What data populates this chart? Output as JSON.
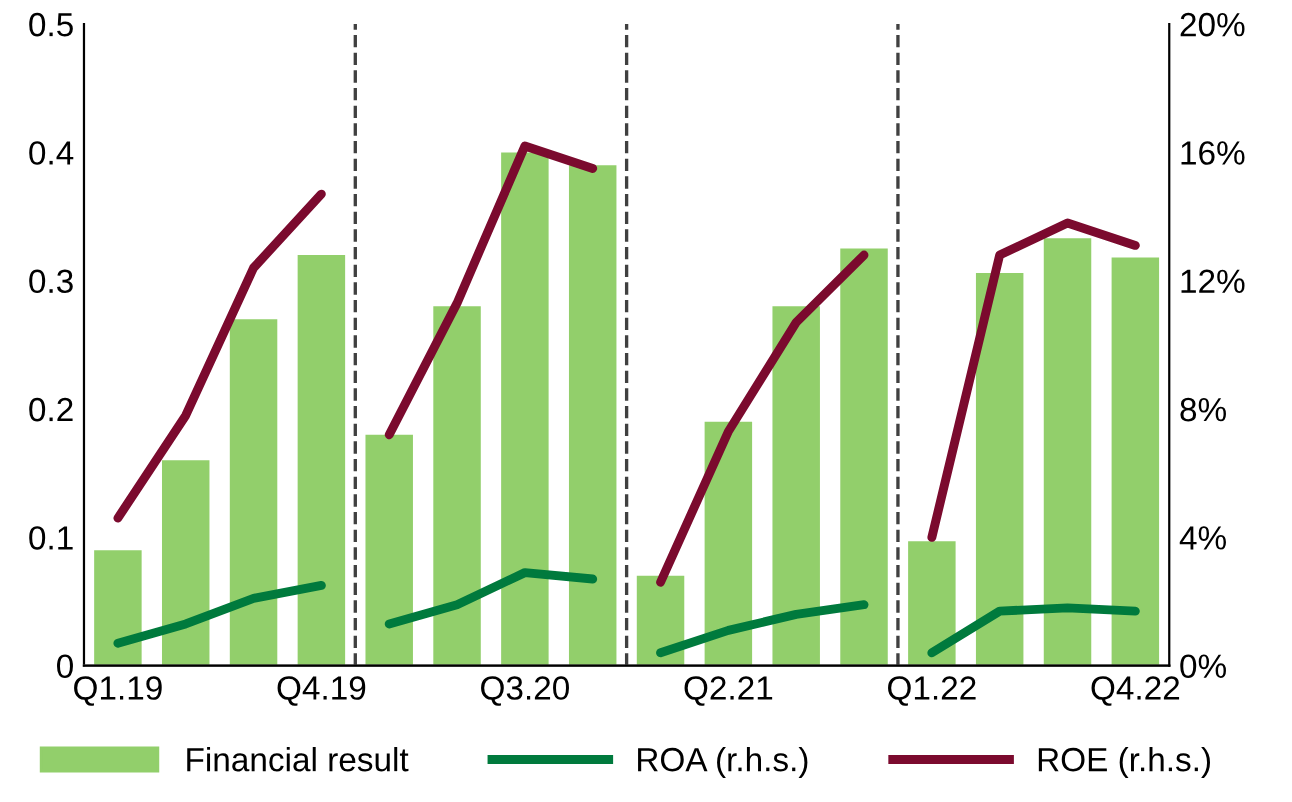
{
  "chart_data": {
    "type": "bar",
    "categories": [
      "Q1.19",
      null,
      null,
      "Q4.19",
      null,
      null,
      "Q3.20",
      null,
      null,
      "Q2.21",
      null,
      null,
      "Q1.22",
      null,
      null,
      "Q4.22"
    ],
    "series": [
      {
        "name": "Financial result",
        "color": "#92cf6b",
        "values": [
          0.09,
          0.16,
          0.27,
          0.32,
          0.18,
          0.28,
          0.4,
          0.39,
          0.07,
          0.19,
          0.28,
          0.325,
          0.097,
          0.306,
          0.333,
          0.318
        ]
      },
      {
        "name": "ROA (r.h.s.)",
        "type": "line",
        "axis": "y2",
        "color": "#007a3d",
        "values": [
          0.7,
          1.3,
          2.1,
          2.5,
          null,
          null,
          null,
          null,
          null,
          null,
          null,
          null,
          null,
          null,
          null,
          null
        ]
      },
      {
        "type": "line",
        "axis": "y2",
        "color": "#007a3d",
        "values": [
          null,
          null,
          null,
          null,
          1.3,
          1.9,
          2.9,
          2.7,
          null,
          null,
          null,
          null,
          null,
          null,
          null,
          null
        ]
      },
      {
        "type": "line",
        "axis": "y2",
        "color": "#007a3d",
        "values": [
          null,
          null,
          null,
          null,
          null,
          null,
          null,
          null,
          0.4,
          1.1,
          1.6,
          1.9,
          null,
          null,
          null,
          null
        ]
      },
      {
        "type": "line",
        "axis": "y2",
        "color": "#007a3d",
        "values": [
          null,
          null,
          null,
          null,
          null,
          null,
          null,
          null,
          null,
          null,
          null,
          null,
          0.4,
          1.7,
          1.8,
          1.7
        ]
      },
      {
        "name": "ROE (r.h.s.)",
        "type": "line",
        "axis": "y2",
        "color": "#7b0a2e",
        "values": [
          4.6,
          7.8,
          12.4,
          14.7,
          null,
          null,
          null,
          null,
          null,
          null,
          null,
          null,
          null,
          null,
          null,
          null
        ]
      },
      {
        "type": "line",
        "axis": "y2",
        "color": "#7b0a2e",
        "values": [
          null,
          null,
          null,
          null,
          7.2,
          11.3,
          16.2,
          15.5,
          null,
          null,
          null,
          null,
          null,
          null,
          null,
          null
        ]
      },
      {
        "type": "line",
        "axis": "y2",
        "color": "#7b0a2e",
        "values": [
          null,
          null,
          null,
          null,
          null,
          null,
          null,
          null,
          2.6,
          7.3,
          10.7,
          12.8,
          null,
          null,
          null,
          null
        ]
      },
      {
        "type": "line",
        "axis": "y2",
        "color": "#7b0a2e",
        "values": [
          null,
          null,
          null,
          null,
          null,
          null,
          null,
          null,
          null,
          null,
          null,
          null,
          4.0,
          12.8,
          13.8,
          13.1
        ]
      }
    ],
    "ylim": [
      0,
      0.5
    ],
    "yticks": [
      0,
      0.1,
      0.2,
      0.3,
      0.4,
      0.5
    ],
    "y2lim": [
      0,
      20
    ],
    "y2ticks": [
      {
        "value": 0,
        "label": "0%"
      },
      {
        "value": 4,
        "label": "4%"
      },
      {
        "value": 8,
        "label": "8%"
      },
      {
        "value": 12,
        "label": "12%"
      },
      {
        "value": 16,
        "label": "16%"
      },
      {
        "value": 20,
        "label": "20%"
      }
    ],
    "grid": false,
    "legend": "bottom",
    "marker": "none",
    "line_style": "solid"
  }
}
